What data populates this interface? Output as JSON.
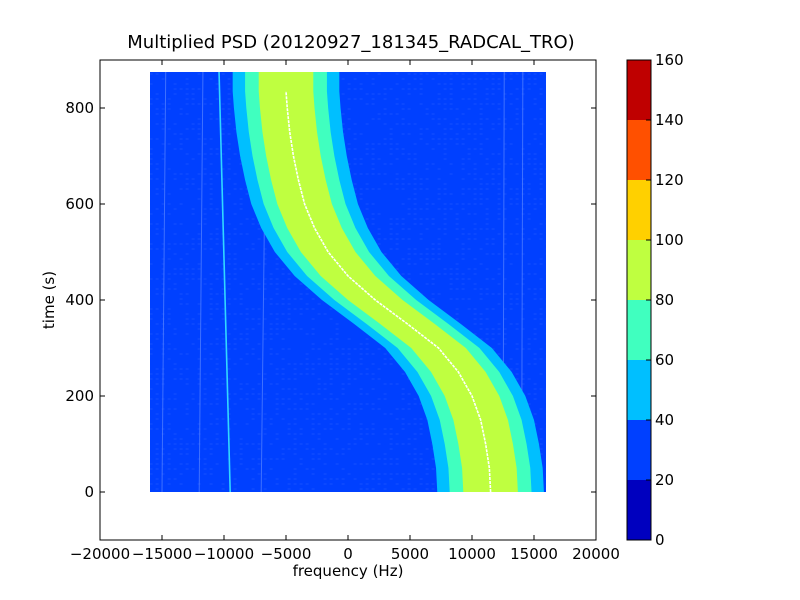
{
  "chart_data": {
    "type": "heatmap",
    "title": "Multiplied PSD (20120927_181345_RADCAL_TRO)",
    "xlabel": "frequency (Hz)",
    "ylabel": "time (s)",
    "xlim": [
      -20000,
      20000
    ],
    "ylim": [
      -100,
      900
    ],
    "x_ticks": [
      -20000,
      -15000,
      -10000,
      -5000,
      0,
      5000,
      10000,
      15000,
      20000
    ],
    "x_tick_labels": [
      "−20000",
      "−15000",
      "−10000",
      "−5000",
      "0",
      "5000",
      "10000",
      "15000",
      "20000"
    ],
    "y_ticks": [
      0,
      200,
      400,
      600,
      800
    ],
    "y_tick_labels": [
      "0",
      "200",
      "400",
      "600",
      "800"
    ],
    "data_extent": {
      "x": [
        -16000,
        16000
      ],
      "y": [
        0,
        875
      ]
    },
    "background_value_range": [
      20,
      40
    ],
    "signal_track": {
      "description_units": "frequency (Hz) at time (s)",
      "time": [
        0,
        50,
        100,
        150,
        200,
        250,
        300,
        350,
        400,
        450,
        500,
        550,
        600,
        650,
        700,
        750,
        800,
        835
      ],
      "frequency": [
        11500,
        11400,
        11100,
        10700,
        10000,
        8900,
        7300,
        4800,
        2200,
        0,
        -1600,
        -2700,
        -3500,
        -4000,
        -4400,
        -4700,
        -4900,
        -5000
      ]
    },
    "drift_line": {
      "points": [
        [
          -9500,
          0
        ],
        [
          -10400,
          875
        ]
      ]
    },
    "colorbar": {
      "min": 0,
      "max": 160,
      "ticks": [
        0,
        20,
        40,
        60,
        80,
        100,
        120,
        140,
        160
      ],
      "tick_labels": [
        "0",
        "20",
        "40",
        "60",
        "80",
        "100",
        "120",
        "140",
        "160"
      ],
      "levels": [
        {
          "from": 0,
          "to": 20,
          "color": "#0000bf"
        },
        {
          "from": 20,
          "to": 40,
          "color": "#0040ff"
        },
        {
          "from": 40,
          "to": 60,
          "color": "#00bfff"
        },
        {
          "from": 60,
          "to": 80,
          "color": "#40ffbf"
        },
        {
          "from": 80,
          "to": 100,
          "color": "#bfff40"
        },
        {
          "from": 100,
          "to": 120,
          "color": "#ffd000"
        },
        {
          "from": 120,
          "to": 140,
          "color": "#ff5000"
        },
        {
          "from": 140,
          "to": 160,
          "color": "#bf0000"
        }
      ]
    },
    "grid": false,
    "legend": "none"
  }
}
